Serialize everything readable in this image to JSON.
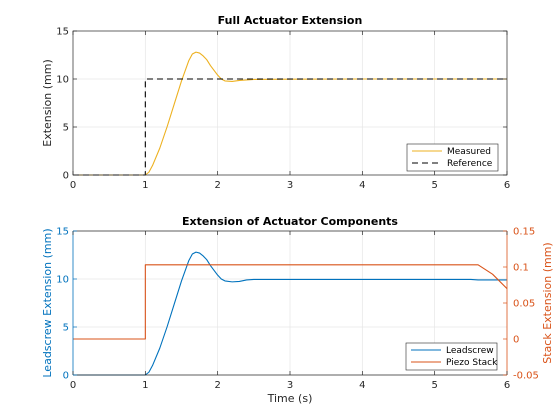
{
  "chart_data": [
    {
      "type": "line",
      "title": "Full Actuator Extension",
      "xlabel": "",
      "ylabel": "Extension (mm)",
      "xlim": [
        0,
        6
      ],
      "ylim": [
        0,
        15
      ],
      "xticks": [
        0,
        1,
        2,
        3,
        4,
        5,
        6
      ],
      "yticks": [
        0,
        5,
        10,
        15
      ],
      "grid": true,
      "legend_position": "bottom-right",
      "series": [
        {
          "name": "Measured",
          "color": "#EDB120",
          "style": "solid",
          "points": [
            [
              0,
              0
            ],
            [
              1.0,
              0
            ],
            [
              1.05,
              0.3
            ],
            [
              1.1,
              1
            ],
            [
              1.2,
              2.8
            ],
            [
              1.3,
              5
            ],
            [
              1.4,
              7.4
            ],
            [
              1.5,
              9.8
            ],
            [
              1.6,
              11.9
            ],
            [
              1.65,
              12.6
            ],
            [
              1.7,
              12.8
            ],
            [
              1.75,
              12.7
            ],
            [
              1.8,
              12.4
            ],
            [
              1.85,
              12
            ],
            [
              1.9,
              11.4
            ],
            [
              2.0,
              10.4
            ],
            [
              2.05,
              10
            ],
            [
              2.1,
              9.8
            ],
            [
              2.2,
              9.75
            ],
            [
              2.3,
              9.85
            ],
            [
              2.5,
              9.95
            ],
            [
              3.0,
              9.98
            ],
            [
              4.0,
              10
            ],
            [
              5.0,
              10
            ],
            [
              6.0,
              10
            ]
          ]
        },
        {
          "name": "Reference",
          "color": "#000000",
          "style": "dashed",
          "points": [
            [
              0,
              0
            ],
            [
              1,
              0
            ],
            [
              1,
              10
            ],
            [
              6,
              10
            ]
          ]
        }
      ]
    },
    {
      "type": "line",
      "title": "Extension of Actuator Components",
      "xlabel": "Time (s)",
      "ylabel": "Leadscrew Extension (mm)",
      "ylabel_right": "Stack Extension (mm)",
      "xlim": [
        0,
        6
      ],
      "ylim": [
        0,
        15
      ],
      "ylim_right": [
        -0.05,
        0.15
      ],
      "xticks": [
        0,
        1,
        2,
        3,
        4,
        5,
        6
      ],
      "yticks": [
        0,
        5,
        10,
        15
      ],
      "yticks_right": [
        "-0.05",
        "0",
        "0.05",
        "0.1",
        "0.15"
      ],
      "grid": true,
      "legend_position": "bottom-right",
      "left_color": "#0072BD",
      "right_color": "#D95319",
      "series": [
        {
          "name": "Leadscrew",
          "color": "#0072BD",
          "axis": "left",
          "points": [
            [
              0,
              0
            ],
            [
              1.0,
              0
            ],
            [
              1.05,
              0.3
            ],
            [
              1.1,
              1
            ],
            [
              1.2,
              2.8
            ],
            [
              1.3,
              5
            ],
            [
              1.4,
              7.4
            ],
            [
              1.5,
              9.8
            ],
            [
              1.6,
              11.9
            ],
            [
              1.65,
              12.6
            ],
            [
              1.7,
              12.8
            ],
            [
              1.75,
              12.7
            ],
            [
              1.8,
              12.4
            ],
            [
              1.85,
              12
            ],
            [
              1.9,
              11.4
            ],
            [
              2.0,
              10.4
            ],
            [
              2.05,
              10
            ],
            [
              2.1,
              9.8
            ],
            [
              2.2,
              9.7
            ],
            [
              2.3,
              9.75
            ],
            [
              2.4,
              9.9
            ],
            [
              2.5,
              9.95
            ],
            [
              3.0,
              9.95
            ],
            [
              5.5,
              9.95
            ],
            [
              5.6,
              9.9
            ],
            [
              6.0,
              9.9
            ]
          ]
        },
        {
          "name": "Piezo Stack",
          "color": "#D95319",
          "axis": "right",
          "points": [
            [
              0,
              0
            ],
            [
              1,
              0
            ],
            [
              1,
              0.103
            ],
            [
              5.6,
              0.103
            ],
            [
              5.8,
              0.09
            ],
            [
              6.0,
              0.07
            ]
          ]
        }
      ]
    }
  ]
}
